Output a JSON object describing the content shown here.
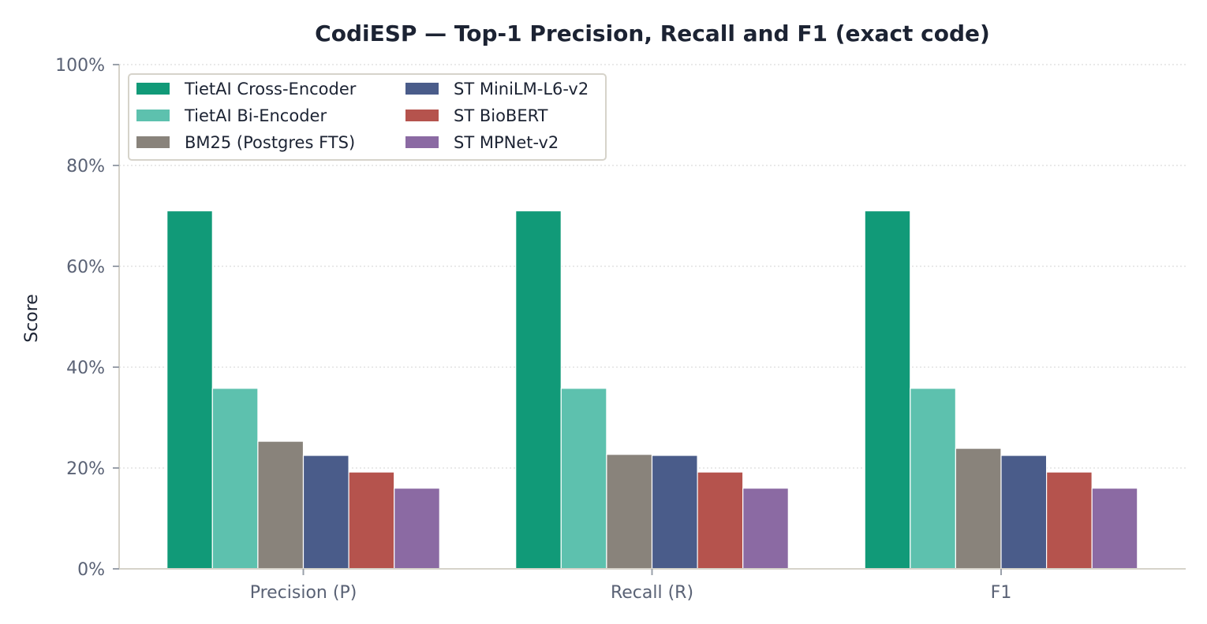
{
  "chart_data": {
    "type": "bar",
    "title": "CodiESP — Top-1 Precision, Recall and F1 (exact code)",
    "xlabel": "",
    "ylabel": "Score",
    "ylim": [
      0,
      100
    ],
    "y_ticks": [
      0,
      20,
      40,
      60,
      80,
      100
    ],
    "y_tick_labels": [
      "0%",
      "20%",
      "40%",
      "60%",
      "80%",
      "100%"
    ],
    "grid": "horizontal dotted",
    "legend_placement": "top-left",
    "categories": [
      "Precision (P)",
      "Recall (R)",
      "F1"
    ],
    "series": [
      {
        "name": "TietAI Cross-Encoder",
        "color": "#119a78",
        "values": [
          71.0,
          71.0,
          71.0
        ]
      },
      {
        "name": "TietAI Bi-Encoder",
        "color": "#5dc1ae",
        "values": [
          35.8,
          35.8,
          35.8
        ]
      },
      {
        "name": "BM25 (Postgres FTS)",
        "color": "#89837b",
        "values": [
          25.3,
          22.7,
          23.9
        ]
      },
      {
        "name": "ST MiniLM-L6-v2",
        "color": "#4a5c8a",
        "values": [
          22.5,
          22.5,
          22.5
        ]
      },
      {
        "name": "ST BioBERT",
        "color": "#b5534d",
        "values": [
          19.2,
          19.2,
          19.2
        ]
      },
      {
        "name": "ST MPNet-v2",
        "color": "#8b6aa3",
        "values": [
          16.0,
          16.0,
          16.0
        ]
      }
    ]
  }
}
